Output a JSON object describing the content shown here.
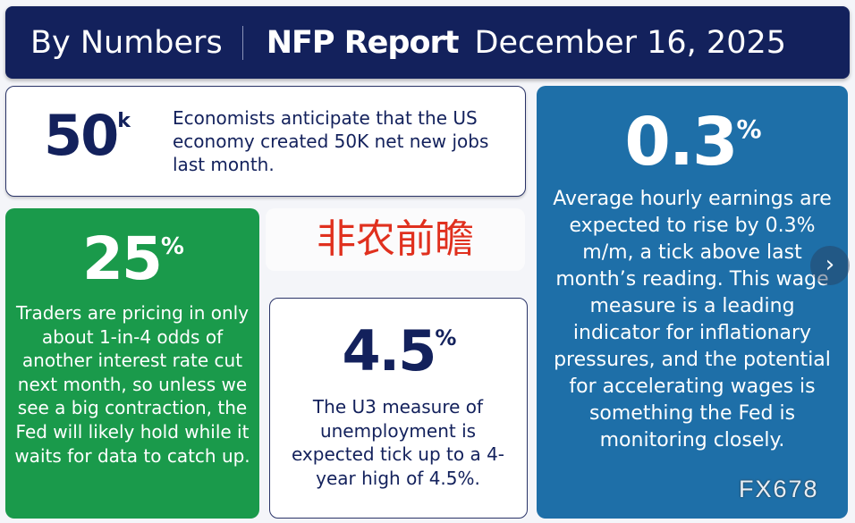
{
  "header": {
    "section": "By Numbers",
    "title": "NFP Report",
    "date": "December 16, 2025"
  },
  "jobs": {
    "value": "50",
    "unit": "k",
    "text": "Economists anticipate that the US economy created 50K net new jobs last month."
  },
  "wages": {
    "value": "0.3",
    "unit": "%",
    "text": "Average hourly earnings are expected to rise by 0.3% m/m, a tick above last month’s reading. This wage measure is a leading indicator for inflationary pressures, and the potential for accelerating wages is something the Fed is monitoring closely."
  },
  "rate_cut": {
    "value": "25",
    "unit": "%",
    "text": "Traders are pricing in only about 1-in-4 odds of another interest rate cut next month, so unless we see a big contraction, the Fed will likely hold while it waits for data to catch up."
  },
  "chinese_title": "非农前瞻",
  "unemployment": {
    "value": "4.5",
    "unit": "%",
    "text": "The U3 measure of unemployment is expected tick up to a 4-year high of 4.5%."
  },
  "next_icon": "chevron-right-icon",
  "watermark": "FX678",
  "colors": {
    "navy": "#13215c",
    "blue": "#1e6fa8",
    "green": "#1a9a4b",
    "red": "#e0301e"
  }
}
